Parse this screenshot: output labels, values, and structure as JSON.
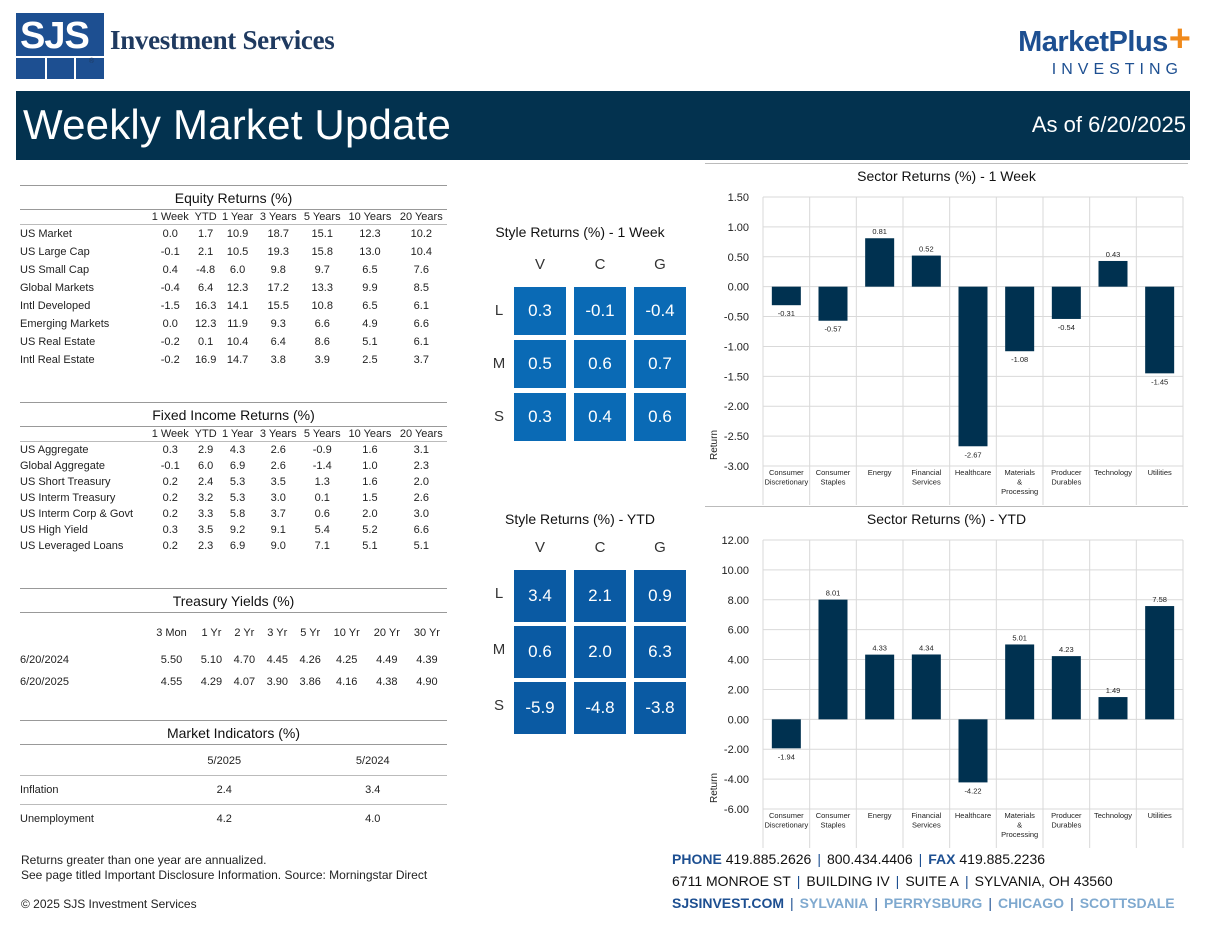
{
  "header": {
    "logo_left_letters": "SJS",
    "logo_left_name": "Investment Services",
    "logo_right_name": "MarketPlus",
    "logo_right_sub": "INVESTING",
    "title": "Weekly Market Update",
    "as_of": "As of 6/20/2025"
  },
  "equity": {
    "title": "Equity Returns (%)",
    "columns": [
      "1 Week",
      "YTD",
      "1 Year",
      "3 Years",
      "5 Years",
      "10 Years",
      "20 Years"
    ],
    "rows": [
      {
        "label": "US Market",
        "values": [
          "0.0",
          "1.7",
          "10.9",
          "18.7",
          "15.1",
          "12.3",
          "10.2"
        ]
      },
      {
        "label": "US Large Cap",
        "values": [
          "-0.1",
          "2.1",
          "10.5",
          "19.3",
          "15.8",
          "13.0",
          "10.4"
        ]
      },
      {
        "label": "US Small Cap",
        "values": [
          "0.4",
          "-4.8",
          "6.0",
          "9.8",
          "9.7",
          "6.5",
          "7.6"
        ]
      },
      {
        "label": "Global Markets",
        "values": [
          "-0.4",
          "6.4",
          "12.3",
          "17.2",
          "13.3",
          "9.9",
          "8.5"
        ]
      },
      {
        "label": "Intl Developed",
        "values": [
          "-1.5",
          "16.3",
          "14.1",
          "15.5",
          "10.8",
          "6.5",
          "6.1"
        ]
      },
      {
        "label": "Emerging Markets",
        "values": [
          "0.0",
          "12.3",
          "11.9",
          "9.3",
          "6.6",
          "4.9",
          "6.6"
        ]
      },
      {
        "label": "US Real Estate",
        "values": [
          "-0.2",
          "0.1",
          "10.4",
          "6.4",
          "8.6",
          "5.1",
          "6.1"
        ]
      },
      {
        "label": "Intl Real Estate",
        "values": [
          "-0.2",
          "16.9",
          "14.7",
          "3.8",
          "3.9",
          "2.5",
          "3.7"
        ]
      }
    ]
  },
  "fixed": {
    "title": "Fixed Income Returns (%)",
    "columns": [
      "1 Week",
      "YTD",
      "1 Year",
      "3 Years",
      "5 Years",
      "10 Years",
      "20 Years"
    ],
    "rows": [
      {
        "label": "US Aggregate",
        "values": [
          "0.3",
          "2.9",
          "4.3",
          "2.6",
          "-0.9",
          "1.6",
          "3.1"
        ]
      },
      {
        "label": "Global Aggregate",
        "values": [
          "-0.1",
          "6.0",
          "6.9",
          "2.6",
          "-1.4",
          "1.0",
          "2.3"
        ]
      },
      {
        "label": "US Short Treasury",
        "values": [
          "0.2",
          "2.4",
          "5.3",
          "3.5",
          "1.3",
          "1.6",
          "2.0"
        ]
      },
      {
        "label": "US Interm Treasury",
        "values": [
          "0.2",
          "3.2",
          "5.3",
          "3.0",
          "0.1",
          "1.5",
          "2.6"
        ]
      },
      {
        "label": "US Interm Corp & Govt",
        "values": [
          "0.2",
          "3.3",
          "5.8",
          "3.7",
          "0.6",
          "2.0",
          "3.0"
        ]
      },
      {
        "label": "US High Yield",
        "values": [
          "0.3",
          "3.5",
          "9.2",
          "9.1",
          "5.4",
          "5.2",
          "6.6"
        ]
      },
      {
        "label": "US Leveraged Loans",
        "values": [
          "0.2",
          "2.3",
          "6.9",
          "9.0",
          "7.1",
          "5.1",
          "5.1"
        ]
      }
    ]
  },
  "treasury": {
    "title": "Treasury Yields (%)",
    "columns": [
      "3 Mon",
      "1 Yr",
      "2 Yr",
      "3 Yr",
      "5 Yr",
      "10 Yr",
      "20 Yr",
      "30 Yr"
    ],
    "rows": [
      {
        "label": "6/20/2024",
        "values": [
          "5.50",
          "5.10",
          "4.70",
          "4.45",
          "4.26",
          "4.25",
          "4.49",
          "4.39"
        ]
      },
      {
        "label": "6/20/2025",
        "values": [
          "4.55",
          "4.29",
          "4.07",
          "3.90",
          "3.86",
          "4.16",
          "4.38",
          "4.90"
        ]
      }
    ]
  },
  "indicators": {
    "title": "Market Indicators (%)",
    "columns": [
      "5/2025",
      "5/2024"
    ],
    "rows": [
      {
        "label": "Inflation",
        "values": [
          "2.4",
          "3.4"
        ]
      },
      {
        "label": "Unemployment",
        "values": [
          "4.2",
          "4.0"
        ]
      }
    ]
  },
  "style_week": {
    "title": "Style Returns (%)  - 1 Week",
    "cols": [
      "V",
      "C",
      "G"
    ],
    "rows": [
      "L",
      "M",
      "S"
    ],
    "values": [
      [
        "0.3",
        "-0.1",
        "-0.4"
      ],
      [
        "0.5",
        "0.6",
        "0.7"
      ],
      [
        "0.3",
        "0.4",
        "0.6"
      ]
    ],
    "colors": [
      [
        "#0a6ab5",
        "#0a6ab5",
        "#0a6ab5"
      ],
      [
        "#0a6ab5",
        "#0a6ab5",
        "#0a6ab5"
      ],
      [
        "#0a6ab5",
        "#0a6ab5",
        "#0a6ab5"
      ]
    ]
  },
  "style_ytd": {
    "title": "Style Returns (%)  - YTD",
    "cols": [
      "V",
      "C",
      "G"
    ],
    "rows": [
      "L",
      "M",
      "S"
    ],
    "values": [
      [
        "3.4",
        "2.1",
        "0.9"
      ],
      [
        "0.6",
        "2.0",
        "6.3"
      ],
      [
        "-5.9",
        "-4.8",
        "-3.8"
      ]
    ],
    "colors": [
      [
        "#0a5aa3",
        "#0a5aa3",
        "#0a5aa3"
      ],
      [
        "#0a5aa3",
        "#0a5aa3",
        "#0a5aa3"
      ],
      [
        "#0a5aa3",
        "#0a5aa3",
        "#0a5aa3"
      ]
    ]
  },
  "chart_data": [
    {
      "type": "bar",
      "title": "Sector Returns (%)  - 1 Week",
      "ylabel": "Return",
      "xlabel": "",
      "ylim": [
        -3.0,
        1.5
      ],
      "yticks": [
        "1.50",
        "1.00",
        "0.50",
        "0.00",
        "-0.50",
        "-1.00",
        "-1.50",
        "-2.00",
        "-2.50",
        "-3.00"
      ],
      "ytick_values": [
        1.5,
        1.0,
        0.5,
        0.0,
        -0.5,
        -1.0,
        -1.5,
        -2.0,
        -2.5,
        -3.0
      ],
      "categories": [
        [
          "Consumer",
          "Discretionary"
        ],
        [
          "Consumer",
          "Staples"
        ],
        [
          "Energy"
        ],
        [
          "Financial",
          "Services"
        ],
        [
          "Healthcare"
        ],
        [
          "Materials",
          "&",
          "Processing"
        ],
        [
          "Producer",
          "Durables"
        ],
        [
          "Technology"
        ],
        [
          "Utilities"
        ]
      ],
      "values": [
        -0.31,
        -0.57,
        0.81,
        0.52,
        -2.67,
        -1.08,
        -0.54,
        0.43,
        -1.45
      ],
      "labels": [
        "-0.31",
        "-0.57",
        "0.81",
        "0.52",
        "-2.67",
        "-1.08",
        "-0.54",
        "0.43",
        "-1.45"
      ],
      "bar_color": "#003150",
      "grid": true
    },
    {
      "type": "bar",
      "title": "Sector Returns (%)  - YTD",
      "ylabel": "Return",
      "xlabel": "",
      "ylim": [
        -6.0,
        12.0
      ],
      "yticks": [
        "12.00",
        "10.00",
        "8.00",
        "6.00",
        "4.00",
        "2.00",
        "0.00",
        "-2.00",
        "-4.00",
        "-6.00"
      ],
      "ytick_values": [
        12,
        10,
        8,
        6,
        4,
        2,
        0,
        -2,
        -4,
        -6
      ],
      "categories": [
        [
          "Consumer",
          "Discretionary"
        ],
        [
          "Consumer",
          "Staples"
        ],
        [
          "Energy"
        ],
        [
          "Financial",
          "Services"
        ],
        [
          "Healthcare"
        ],
        [
          "Materials",
          "&",
          "Processing"
        ],
        [
          "Producer",
          "Durables"
        ],
        [
          "Technology"
        ],
        [
          "Utilities"
        ]
      ],
      "values": [
        -1.94,
        8.01,
        4.33,
        4.34,
        -4.22,
        5.01,
        4.23,
        1.49,
        7.58
      ],
      "labels": [
        "-1.94",
        "8.01",
        "4.33",
        "4.34",
        "-4.22",
        "5.01",
        "4.23",
        "1.49",
        "7.58"
      ],
      "bar_color": "#003150",
      "grid": true
    }
  ],
  "footer": {
    "note1": "Returns greater than one year are annualized.",
    "note2": "See page titled Important Disclosure Information. Source: Morningstar Direct",
    "copyright": "© 2025 SJS Investment Services",
    "phone_label": "PHONE",
    "phone1": "419.885.2626",
    "phone2": "800.434.4406",
    "fax_label": "FAX",
    "fax": "419.885.2236",
    "addr1": "6711 MONROE ST",
    "addr2": "BUILDING IV",
    "addr3": "SUITE A",
    "addr4": "SYLVANIA, OH 43560",
    "web": "SJSINVEST.COM",
    "loc1": "SYLVANIA",
    "loc2": "PERRYSBURG",
    "loc3": "CHICAGO",
    "loc4": "SCOTTSDALE"
  }
}
